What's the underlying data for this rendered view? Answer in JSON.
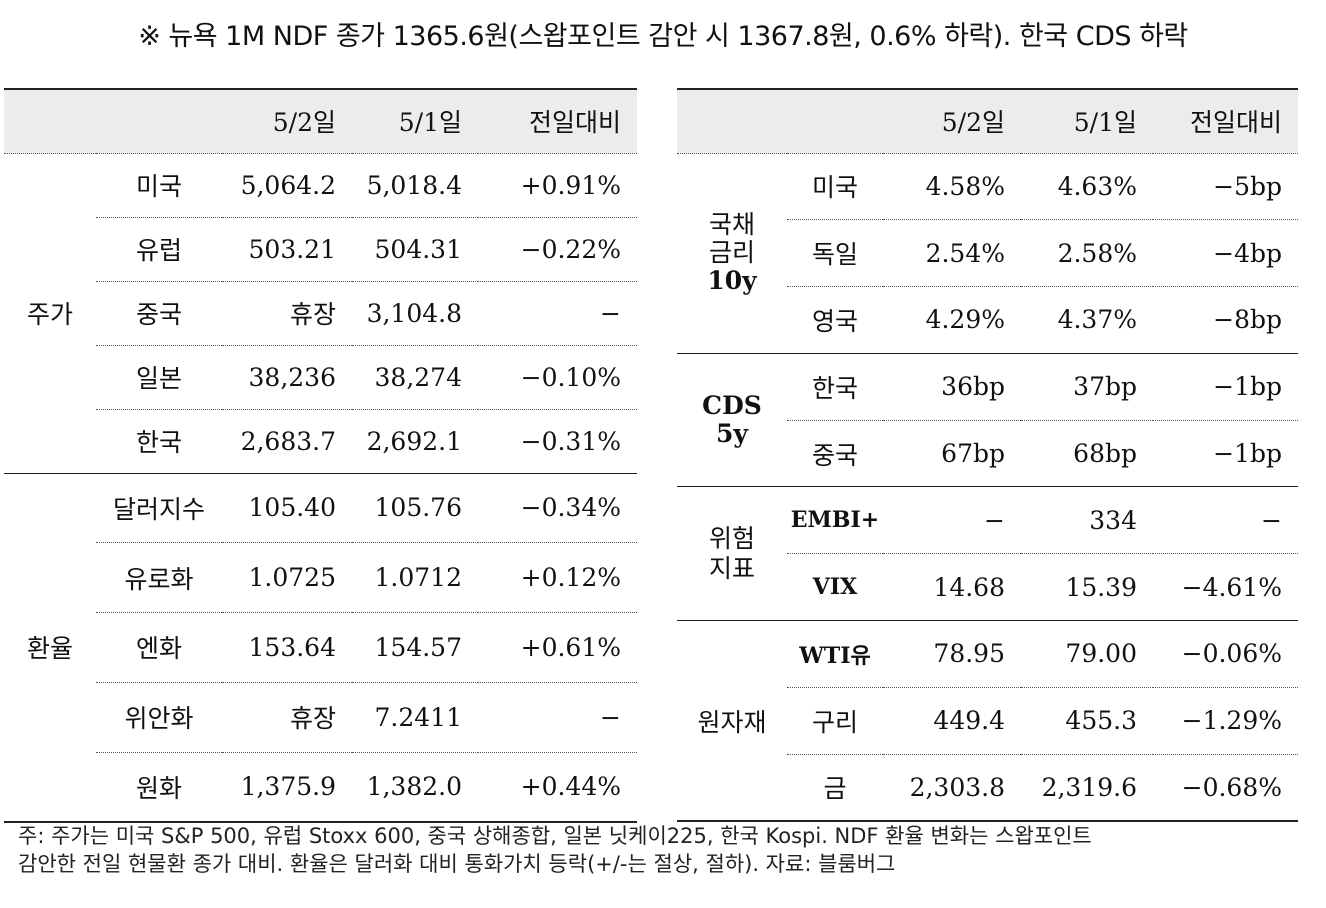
{
  "title": "※ 뉴욕 1M NDF 종가 1365.6원(스왑포인트 감안 시 1367.8원, 0.6% 하락). 한국 CDS 하락",
  "headers": {
    "d1": "5/2일",
    "d2": "5/1일",
    "chg": "전일대비"
  },
  "left": {
    "stocks_label": "주가",
    "stocks": [
      {
        "name": "미국",
        "d1": "5,064.2",
        "d2": "5,018.4",
        "chg": "+0.91%"
      },
      {
        "name": "유럽",
        "d1": "503.21",
        "d2": "504.31",
        "chg": "−0.22%"
      },
      {
        "name": "중국",
        "d1": "휴장",
        "d2": "3,104.8",
        "chg": "−"
      },
      {
        "name": "일본",
        "d1": "38,236",
        "d2": "38,274",
        "chg": "−0.10%"
      },
      {
        "name": "한국",
        "d1": "2,683.7",
        "d2": "2,692.1",
        "chg": "−0.31%"
      }
    ],
    "fx_label": "환율",
    "fx": [
      {
        "name": "달러지수",
        "d1": "105.40",
        "d2": "105.76",
        "chg": "−0.34%"
      },
      {
        "name": "유로화",
        "d1": "1.0725",
        "d2": "1.0712",
        "chg": "+0.12%"
      },
      {
        "name": "엔화",
        "d1": "153.64",
        "d2": "154.57",
        "chg": "+0.61%"
      },
      {
        "name": "위안화",
        "d1": "휴장",
        "d2": "7.2411",
        "chg": "−"
      },
      {
        "name": "원화",
        "d1": "1,375.9",
        "d2": "1,382.0",
        "chg": "+0.44%"
      }
    ]
  },
  "right": {
    "bond_label_1": "국채",
    "bond_label_2": "금리",
    "bond_label_3": "10y",
    "bonds": [
      {
        "name": "미국",
        "d1": "4.58%",
        "d2": "4.63%",
        "chg": "−5bp"
      },
      {
        "name": "독일",
        "d1": "2.54%",
        "d2": "2.58%",
        "chg": "−4bp"
      },
      {
        "name": "영국",
        "d1": "4.29%",
        "d2": "4.37%",
        "chg": "−8bp"
      }
    ],
    "cds_label_1": "CDS",
    "cds_label_2": "5y",
    "cds": [
      {
        "name": "한국",
        "d1": "36bp",
        "d2": "37bp",
        "chg": "−1bp"
      },
      {
        "name": "중국",
        "d1": "67bp",
        "d2": "68bp",
        "chg": "−1bp"
      }
    ],
    "risk_label_1": "위험",
    "risk_label_2": "지표",
    "risk": [
      {
        "name": "EMBI+",
        "d1": "−",
        "d2": "334",
        "chg": "−"
      },
      {
        "name": "VIX",
        "d1": "14.68",
        "d2": "15.39",
        "chg": "−4.61%"
      }
    ],
    "comm_label": "원자재",
    "comm": [
      {
        "name": "WTI유",
        "d1": "78.95",
        "d2": "79.00",
        "chg": "−0.06%"
      },
      {
        "name": "구리",
        "d1": "449.4",
        "d2": "455.3",
        "chg": "−1.29%"
      },
      {
        "name": "금",
        "d1": "2,303.8",
        "d2": "2,319.6",
        "chg": "−0.68%"
      }
    ]
  },
  "footnote": {
    "line1": "주: 주가는 미국 S&P 500, 유럽 Stoxx 600, 중국 상해종합, 일본 닛케이225, 한국 Kospi. NDF 환율 변화는 스왑포인트",
    "line2": "감안한 전일 현물환 종가 대비. 환율은 달러화 대비 통화가치 등락(+/-는 절상, 절하). 자료: 블룸버그"
  }
}
